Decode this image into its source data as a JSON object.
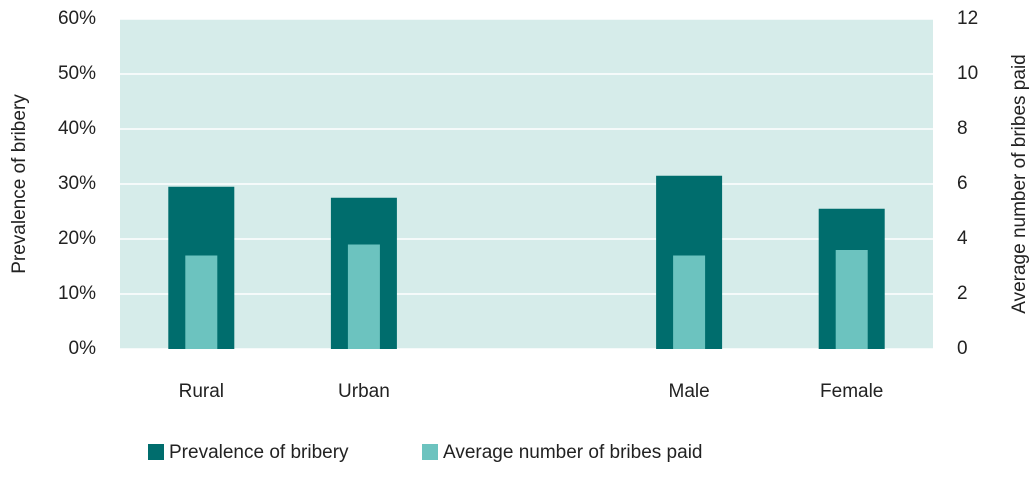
{
  "chart_data": {
    "type": "bar",
    "categories": [
      "Rural",
      "Urban",
      null,
      "Male",
      "Female"
    ],
    "series": [
      {
        "name": "Prevalence of bribery",
        "color": "#006d6d",
        "values": [
          29.5,
          27.5,
          null,
          31.5,
          25.5
        ]
      },
      {
        "name": "Average number of bribes paid",
        "color": "#6cc3bf",
        "axis": "y2",
        "values": [
          3.4,
          3.8,
          null,
          3.4,
          3.6
        ]
      }
    ],
    "ylabel": "Prevalence of bribery",
    "y2label": "Average number of bribes paid",
    "ylim": [
      0,
      60
    ],
    "yticks": [
      {
        "value": 0,
        "label": "0%"
      },
      {
        "value": 10,
        "label": "10%"
      },
      {
        "value": 20,
        "label": "20%"
      },
      {
        "value": 30,
        "label": "30%"
      },
      {
        "value": 40,
        "label": "40%"
      },
      {
        "value": 50,
        "label": "50%"
      },
      {
        "value": 60,
        "label": "60%"
      }
    ],
    "y2lim": [
      0,
      12
    ],
    "y2ticks": [
      0,
      2,
      4,
      6,
      8,
      10,
      12
    ],
    "grid": true,
    "plot_background": "#d6ecea",
    "legend": "bottom"
  }
}
